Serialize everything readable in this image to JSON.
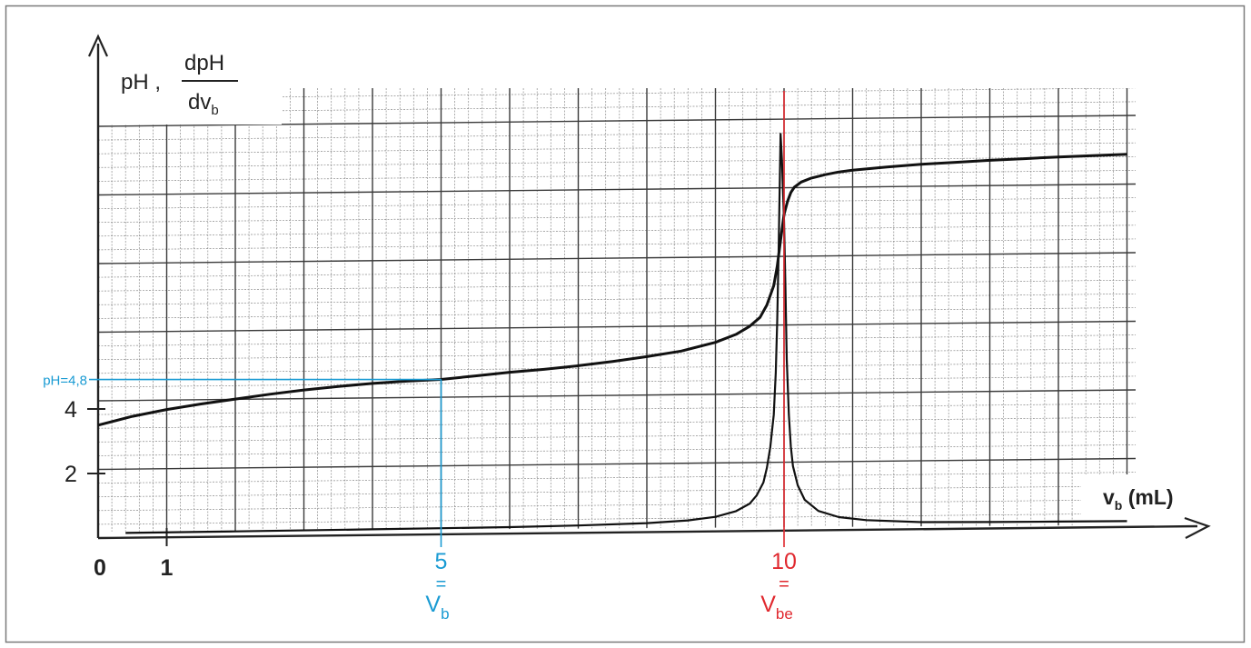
{
  "chart_data": {
    "type": "line",
    "ylabel": {
      "prefix": "pH ,",
      "frac_num": "dpH",
      "frac_den_main": "dv",
      "frac_den_sub": "b"
    },
    "xlabel": {
      "main": "v",
      "sub": "b",
      "rest": " (mL)"
    },
    "x_ticks": [
      {
        "value": 0,
        "label": "0"
      },
      {
        "value": 1,
        "label": "1"
      }
    ],
    "y_ticks": [
      {
        "value": 2,
        "label": "2"
      },
      {
        "value": 4,
        "label": "4"
      }
    ],
    "xlim": [
      0,
      16
    ],
    "ylim": [
      0,
      14
    ],
    "grid": true,
    "series": [
      {
        "kind": "pH",
        "x": [
          0,
          0.5,
          1,
          1.5,
          2,
          2.5,
          3,
          3.5,
          4,
          4.5,
          5,
          5.5,
          6,
          6.5,
          7,
          7.5,
          8,
          8.5,
          9,
          9.3,
          9.5,
          9.65,
          9.75,
          9.85,
          9.9,
          9.95,
          10.0,
          10.05,
          10.1,
          10.15,
          10.25,
          10.4,
          10.6,
          10.8,
          11,
          11.5,
          12,
          12.5,
          13,
          13.5,
          14,
          14.5,
          15
        ],
        "y": [
          3.5,
          3.76,
          3.96,
          4.12,
          4.26,
          4.4,
          4.52,
          4.62,
          4.7,
          4.76,
          4.8,
          4.9,
          5.0,
          5.08,
          5.18,
          5.3,
          5.44,
          5.6,
          5.86,
          6.1,
          6.35,
          6.62,
          7.0,
          7.6,
          8.2,
          9.0,
          9.8,
          10.2,
          10.48,
          10.64,
          10.8,
          10.92,
          11.02,
          11.1,
          11.15,
          11.24,
          11.31,
          11.36,
          11.41,
          11.45,
          11.49,
          11.52,
          11.55
        ]
      },
      {
        "kind": "dpH/dvb",
        "x": [
          0.4,
          2,
          4,
          6,
          7,
          8,
          8.6,
          9.0,
          9.3,
          9.5,
          9.6,
          9.7,
          9.75,
          9.8,
          9.85,
          9.88,
          9.9,
          9.92,
          9.95,
          9.97,
          10.0,
          10.02,
          10.04,
          10.07,
          10.1,
          10.13,
          10.2,
          10.3,
          10.5,
          10.8,
          11.2,
          12,
          13,
          14,
          15
        ],
        "y": [
          0.15,
          0.16,
          0.18,
          0.2,
          0.23,
          0.28,
          0.35,
          0.45,
          0.62,
          0.85,
          1.1,
          1.5,
          1.95,
          2.6,
          3.6,
          4.9,
          6.5,
          8.6,
          12.3,
          11.5,
          9.6,
          7.6,
          5.3,
          3.6,
          2.6,
          2.0,
          1.4,
          0.95,
          0.6,
          0.4,
          0.3,
          0.22,
          0.2,
          0.19,
          0.18
        ]
      }
    ],
    "annotations": [
      {
        "color": "#1a9bd3",
        "x": 5,
        "y": 4.8,
        "y_label": "pH=4,8",
        "x_label": "5",
        "eq": "=",
        "name_main": "V",
        "name_sub": "b"
      },
      {
        "color": "#e0282e",
        "x": 10,
        "x_label": "10",
        "eq": "=",
        "name_main": "V",
        "name_sub": "be"
      }
    ]
  }
}
